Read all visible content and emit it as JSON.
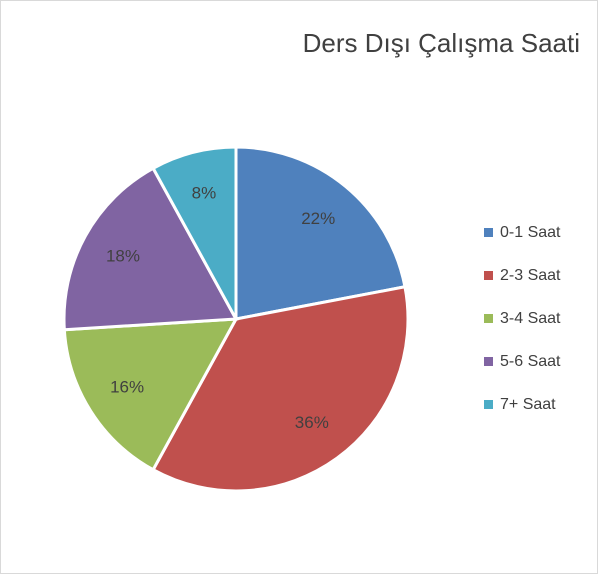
{
  "chart_data": {
    "type": "pie",
    "title": "Ders Dışı Çalışma Saati",
    "categories": [
      "0-1 Saat",
      "2-3 Saat",
      "3-4 Saat",
      "5-6 Saat",
      "7+ Saat"
    ],
    "values": [
      22,
      36,
      16,
      18,
      8
    ],
    "value_labels": [
      "22%",
      "36%",
      "16%",
      "18%",
      "8%"
    ],
    "colors": [
      "#4f81bd",
      "#c0504d",
      "#9bbb59",
      "#8064a2",
      "#4bacc6"
    ],
    "legend": "right"
  }
}
